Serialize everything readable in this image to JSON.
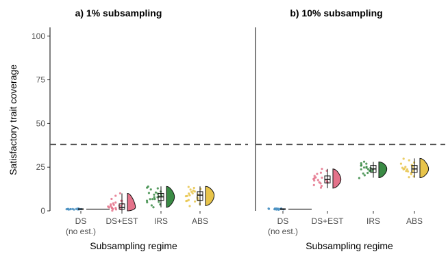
{
  "chart_data": [
    {
      "type": "raincloud",
      "title": "a) 1% subsampling",
      "xlabel": "Subsampling regime",
      "ylabel": "Satisfactory trait coverage",
      "ylim": [
        0,
        105
      ],
      "yticks": [
        0,
        25,
        50,
        75,
        100
      ],
      "reference_line": 38,
      "categories": [
        {
          "label": "DS",
          "sublabel": "(no est.)",
          "color": "#4a90c2",
          "min": 1,
          "q1": 1,
          "median": 1,
          "q3": 1,
          "max": 1,
          "width": 0.55,
          "points": [
            1,
            1,
            1,
            1,
            1,
            1,
            1,
            1,
            1,
            1,
            1,
            1,
            1,
            1,
            1
          ]
        },
        {
          "label": "DS+EST",
          "color": "#e4728a",
          "min": 0,
          "q1": 1,
          "median": 2,
          "q3": 4,
          "max": 10,
          "width": 0.65,
          "points": [
            0.5,
            1,
            1.5,
            2,
            2,
            2.5,
            3,
            3,
            3.5,
            4,
            4,
            5,
            5.5,
            6,
            7,
            9,
            10,
            0.5,
            1,
            2,
            3,
            4
          ]
        },
        {
          "label": "IRS",
          "color": "#3a8b45",
          "min": 2,
          "q1": 6,
          "median": 8,
          "q3": 10,
          "max": 14,
          "width": 0.65,
          "points": [
            2,
            3,
            4,
            5,
            5.5,
            6,
            6.5,
            7,
            7.5,
            8,
            8,
            8.5,
            9,
            9.5,
            10,
            10.5,
            11,
            12,
            12.5,
            13,
            14,
            7,
            9
          ]
        },
        {
          "label": "ABS",
          "color": "#e8c44a",
          "min": 3,
          "q1": 6,
          "median": 9,
          "q3": 11,
          "max": 14,
          "width": 0.7,
          "points": [
            3,
            4,
            5,
            5.5,
            6,
            6.5,
            7,
            8,
            8.5,
            9,
            9.5,
            10,
            10.5,
            11,
            11.5,
            12,
            12.5,
            13,
            14,
            8,
            10,
            6
          ]
        }
      ]
    },
    {
      "type": "raincloud",
      "title": "b) 10% subsampling",
      "xlabel": "Subsampling regime",
      "ylim": [
        0,
        105
      ],
      "reference_line": 38,
      "categories": [
        {
          "label": "DS",
          "sublabel": "(no est.)",
          "color": "#4a90c2",
          "min": 1,
          "q1": 1,
          "median": 1,
          "q3": 1,
          "max": 1,
          "width": 0.55,
          "points": [
            1,
            1,
            1,
            1,
            1,
            1,
            1,
            1,
            1,
            1,
            1,
            1,
            1,
            1,
            1
          ]
        },
        {
          "label": "DS+EST",
          "color": "#e4728a",
          "min": 13,
          "q1": 16,
          "median": 18,
          "q3": 20,
          "max": 24,
          "width": 0.65,
          "points": [
            13,
            14,
            15,
            15.5,
            16,
            16.5,
            17,
            17.5,
            18,
            18.5,
            19,
            19.5,
            20,
            21,
            22,
            23,
            24,
            16,
            19,
            18
          ]
        },
        {
          "label": "IRS",
          "color": "#3a8b45",
          "min": 19,
          "q1": 22,
          "median": 24,
          "q3": 26,
          "max": 28,
          "width": 0.65,
          "points": [
            19,
            20,
            21,
            22,
            22.5,
            23,
            23.5,
            24,
            24.5,
            25,
            25.5,
            26,
            26.5,
            27,
            27.5,
            28,
            24,
            23,
            25
          ]
        },
        {
          "label": "ABS",
          "color": "#e8c44a",
          "min": 19,
          "q1": 22,
          "median": 24,
          "q3": 26,
          "max": 30,
          "width": 0.7,
          "points": [
            19,
            20,
            21,
            22,
            22.5,
            23,
            23.5,
            24,
            24.5,
            25,
            25.5,
            26,
            27,
            28,
            29,
            30,
            24,
            23,
            25
          ]
        }
      ]
    }
  ]
}
